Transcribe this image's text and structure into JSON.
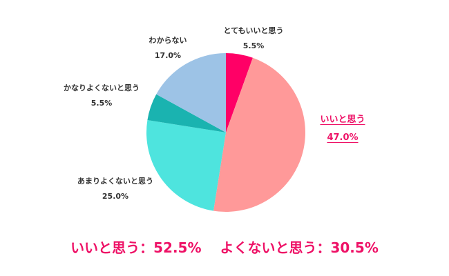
{
  "chart_data": {
    "type": "pie",
    "title": "",
    "start_angle_deg": 0,
    "direction": "clockwise",
    "categories": [
      "とてもいいと思う",
      "いいと思う",
      "あまりよくないと思う",
      "かなりよくないと思う",
      "わからない"
    ],
    "values": [
      5.5,
      47.0,
      25.0,
      5.5,
      17.0
    ],
    "labels_pct": [
      "5.5%",
      "47.0%",
      "25.0%",
      "5.5%",
      "17.0%"
    ],
    "colors": [
      "#ff0066",
      "#ff9999",
      "#4ee4de",
      "#1ab3b0",
      "#9dc3e6"
    ],
    "highlight": "いいと思う",
    "summary": {
      "good_label": "いいと思う：52.5%",
      "bad_label": "よくないと思う：30.5%"
    }
  },
  "labels": [
    {
      "name": "とてもいいと思う",
      "pct": "5.5%"
    },
    {
      "name": "いいと思う",
      "pct": "47.0%"
    },
    {
      "name": "あまりよくないと思う",
      "pct": "25.0%"
    },
    {
      "name": "かなりよくないと思う",
      "pct": "5.5%"
    },
    {
      "name": "わからない",
      "pct": "17.0%"
    }
  ],
  "summary_text": "いいと思う：52.5%　 よくないと思う：30.5%",
  "accent_color": "#ee1166"
}
